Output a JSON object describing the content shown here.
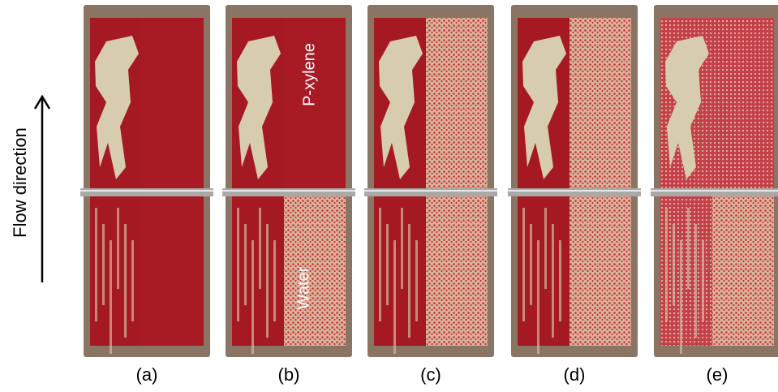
{
  "figure": {
    "axis_label": "Flow direction",
    "annotations": {
      "top": "P-xylene",
      "bottom": "Water"
    },
    "panels": [
      {
        "label": "(a)"
      },
      {
        "label": "(b)"
      },
      {
        "label": "(c)"
      },
      {
        "label": "(d)"
      },
      {
        "label": "(e)"
      }
    ]
  }
}
